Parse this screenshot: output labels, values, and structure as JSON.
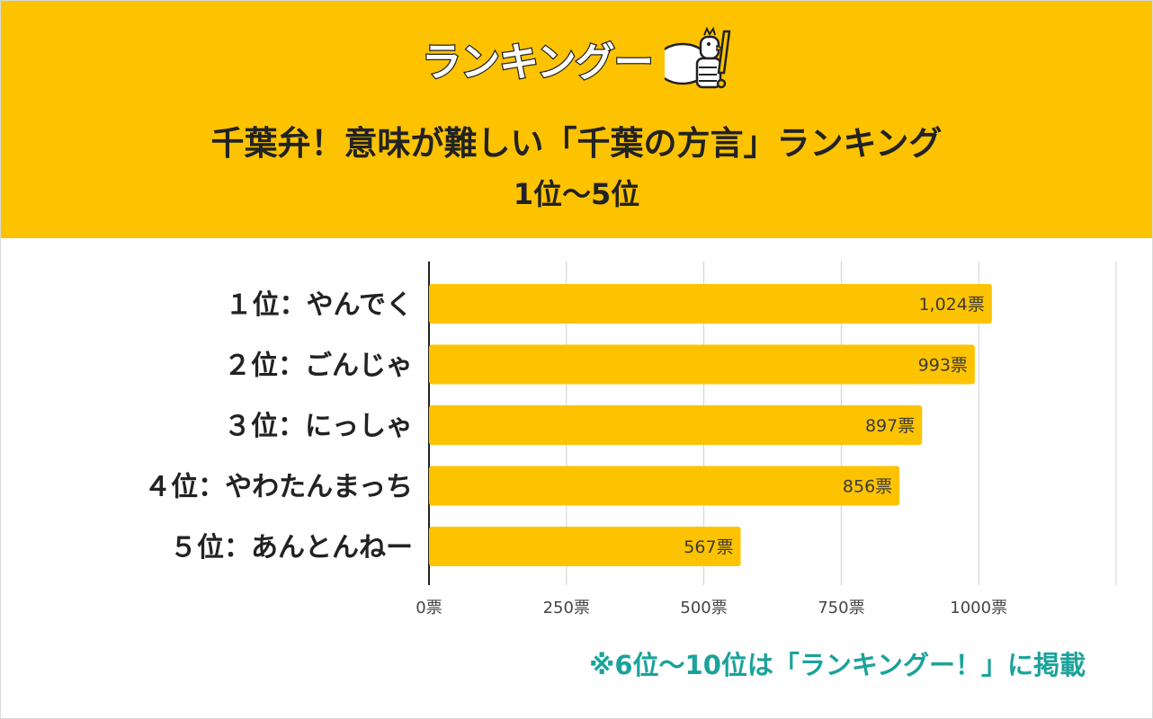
{
  "header": {
    "logo_text": "ランキングー",
    "title": "千葉弁！意味が難しい「千葉の方言」ランキング",
    "subtitle": "1位〜5位"
  },
  "colors": {
    "header_bg": "#fdc300",
    "bar": "#fdc300",
    "note": "#1aa39a",
    "grid": "#d0d0d0",
    "axis": "#222222"
  },
  "chart_data": {
    "type": "bar",
    "orientation": "horizontal",
    "categories": [
      "１位：やんでく",
      "２位：ごんじゃ",
      "３位：にっしゃ",
      "４位：やわたんまっち",
      "５位：あんとんねー"
    ],
    "values": [
      1024,
      993,
      897,
      856,
      567
    ],
    "value_labels": [
      "1,024票",
      "993票",
      "897票",
      "856票",
      "567票"
    ],
    "xlim": [
      0,
      1250
    ],
    "xticks": [
      0,
      250,
      500,
      750,
      1000
    ],
    "xtick_labels": [
      "0票",
      "250票",
      "500票",
      "750票",
      "1000票"
    ],
    "grid": true
  },
  "footer": {
    "note": "※6位〜10位は「ランキングー！」に掲載"
  }
}
